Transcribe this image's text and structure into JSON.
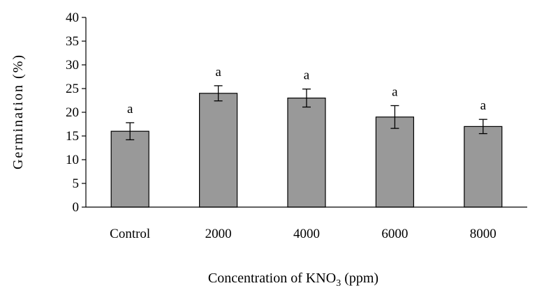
{
  "chart_data": {
    "type": "bar",
    "categories": [
      "Control",
      "2000",
      "4000",
      "6000",
      "8000"
    ],
    "values": [
      16,
      24,
      23,
      19,
      17
    ],
    "errors": [
      1.8,
      1.6,
      1.9,
      2.4,
      1.5
    ],
    "significance_labels": [
      "a",
      "a",
      "a",
      "a",
      "a"
    ],
    "xlabel_main": "Concentration of KNO",
    "xlabel_sub": "3",
    "xlabel_unit": " (ppm)",
    "ylabel": "Germination (%)",
    "ylim": [
      0,
      40
    ],
    "yticks": [
      0,
      5,
      10,
      15,
      20,
      25,
      30,
      35,
      40
    ],
    "ytick_labels": [
      "0",
      "5",
      "10",
      "15",
      "20",
      "25",
      "30",
      "35",
      "40"
    ],
    "grid": false,
    "legend": "none",
    "bar_color": "#999999"
  }
}
